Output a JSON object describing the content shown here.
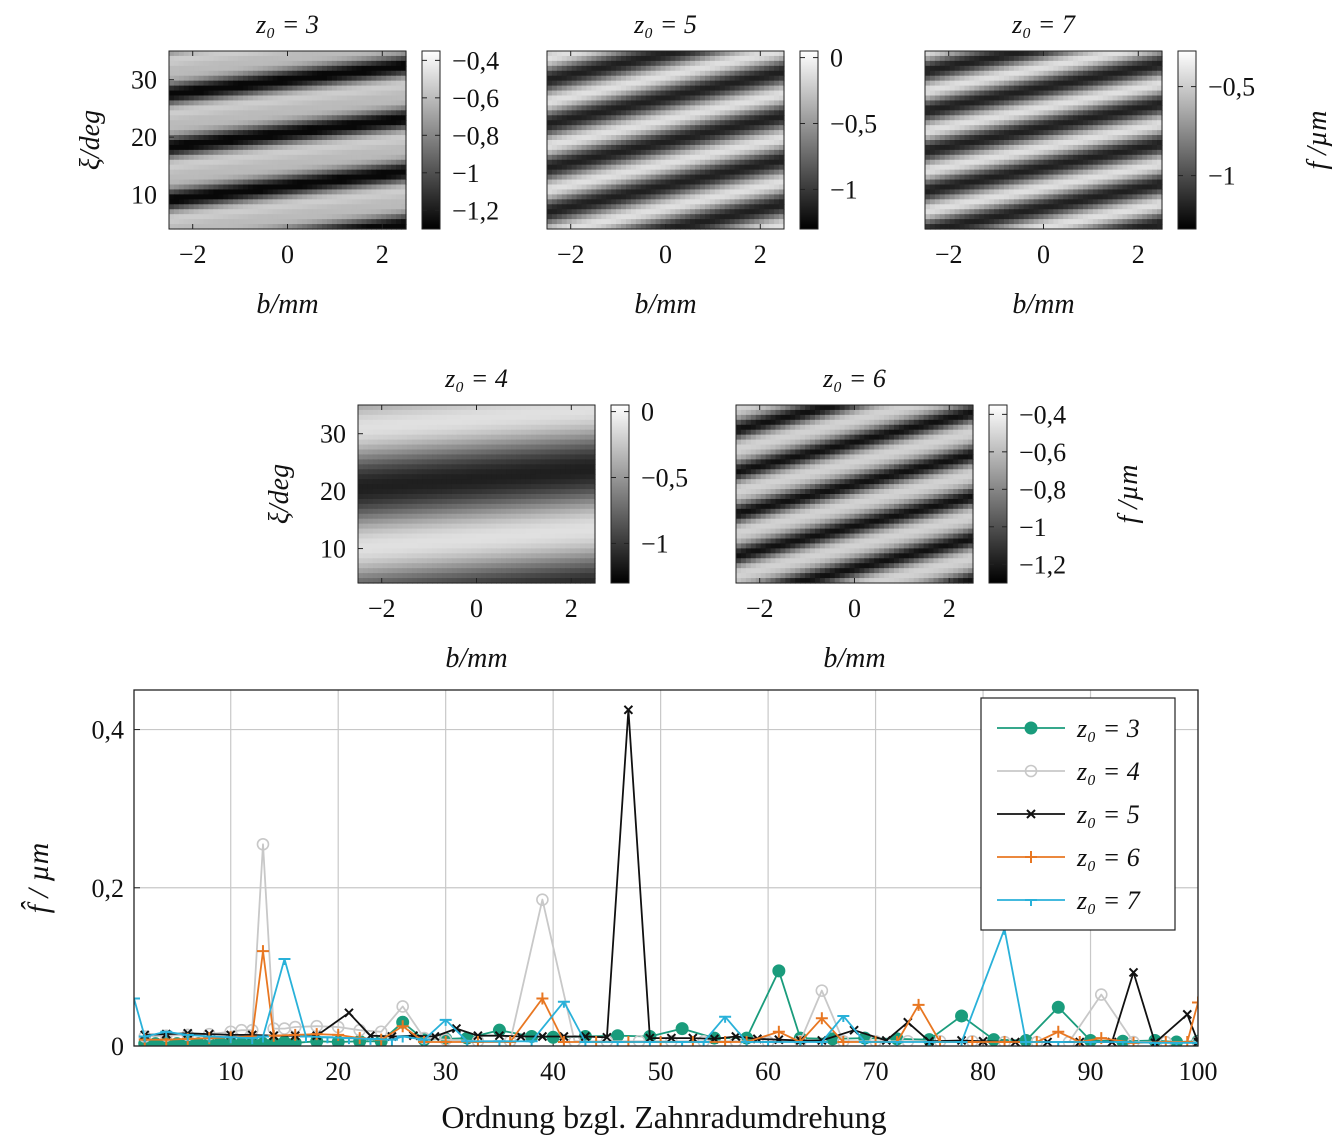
{
  "heatmaps": [
    {
      "id": "hm3",
      "title": "z₀ = 3",
      "x_ticks": [
        "−2",
        "0",
        "2"
      ],
      "x_tick_values": [
        -2,
        0,
        2
      ],
      "y_ticks": [
        "10",
        "20",
        "30"
      ],
      "y_tick_values": [
        10,
        20,
        30
      ],
      "xlabel": "b/mm",
      "ylabel": "ξ/deg",
      "colorbar_ticks": [
        "−0,4",
        "−0,6",
        "−0,8",
        "−1",
        "−1,2"
      ],
      "colorbar_values": [
        -0.4,
        -0.6,
        -0.8,
        -1.0,
        -1.2
      ],
      "cb_range": [
        -1.3,
        -0.35
      ],
      "colorbar_label": ""
    },
    {
      "id": "hm5",
      "title": "z₀ = 5",
      "x_ticks": [
        "−2",
        "0",
        "2"
      ],
      "x_tick_values": [
        -2,
        0,
        2
      ],
      "y_ticks": [],
      "y_tick_values": [],
      "xlabel": "b/mm",
      "ylabel": "",
      "colorbar_ticks": [
        "0",
        "−0,5",
        "−1"
      ],
      "colorbar_values": [
        0,
        -0.5,
        -1.0
      ],
      "cb_range": [
        -1.3,
        0.05
      ],
      "colorbar_label": ""
    },
    {
      "id": "hm7",
      "title": "z₀ = 7",
      "x_ticks": [
        "−2",
        "0",
        "2"
      ],
      "x_tick_values": [
        -2,
        0,
        2
      ],
      "y_ticks": [],
      "y_tick_values": [],
      "xlabel": "b/mm",
      "ylabel": "",
      "colorbar_ticks": [
        "−0,5",
        "−1"
      ],
      "colorbar_values": [
        -0.5,
        -1.0
      ],
      "cb_range": [
        -1.3,
        -0.3
      ],
      "colorbar_label": "f /µm"
    },
    {
      "id": "hm4",
      "title": "z₀ = 4",
      "x_ticks": [
        "−2",
        "0",
        "2"
      ],
      "x_tick_values": [
        -2,
        0,
        2
      ],
      "y_ticks": [
        "10",
        "20",
        "30"
      ],
      "y_tick_values": [
        10,
        20,
        30
      ],
      "xlabel": "b/mm",
      "ylabel": "ξ/deg",
      "colorbar_ticks": [
        "0",
        "−0,5",
        "−1"
      ],
      "colorbar_values": [
        0,
        -0.5,
        -1.0
      ],
      "cb_range": [
        -1.3,
        0.05
      ],
      "colorbar_label": ""
    },
    {
      "id": "hm6",
      "title": "z₀ = 6",
      "x_ticks": [
        "−2",
        "0",
        "2"
      ],
      "x_tick_values": [
        -2,
        0,
        2
      ],
      "y_ticks": [],
      "y_tick_values": [],
      "xlabel": "b/mm",
      "ylabel": "",
      "colorbar_ticks": [
        "−0,4",
        "−0,6",
        "−0,8",
        "−1",
        "−1,2"
      ],
      "colorbar_values": [
        -0.4,
        -0.6,
        -0.8,
        -1.0,
        -1.2
      ],
      "cb_range": [
        -1.3,
        -0.35
      ],
      "colorbar_label": "f /µm"
    }
  ],
  "chart_data": {
    "type": "line",
    "xlabel": "Ordnung bzgl. Zahnradumdrehung",
    "ylabel": "f̂ / µm",
    "xlim": [
      1,
      100
    ],
    "ylim": [
      0,
      0.45
    ],
    "x_ticks": [
      10,
      20,
      30,
      40,
      50,
      60,
      70,
      80,
      90,
      100
    ],
    "y_ticks": [
      0,
      0.2,
      0.4
    ],
    "y_tick_labels": [
      "0",
      "0,2",
      "0,4"
    ],
    "grid": true,
    "legend_position": "top-right",
    "series": [
      {
        "name": "z₀ = 3",
        "color": "#1a9c7c",
        "marker": "filled-circle",
        "points": [
          [
            2,
            0.003
          ],
          [
            3,
            0.003
          ],
          [
            4,
            0.004
          ],
          [
            5,
            0.003
          ],
          [
            6,
            0.004
          ],
          [
            7,
            0.003
          ],
          [
            8,
            0.003
          ],
          [
            9,
            0.004
          ],
          [
            10,
            0.004
          ],
          [
            11,
            0.003
          ],
          [
            12,
            0.004
          ],
          [
            13,
            0.003
          ],
          [
            14,
            0.004
          ],
          [
            15,
            0.005
          ],
          [
            16,
            0.004
          ],
          [
            18,
            0.006
          ],
          [
            20,
            0.005
          ],
          [
            22,
            0.006
          ],
          [
            24,
            0.006
          ],
          [
            26,
            0.03
          ],
          [
            28,
            0.008
          ],
          [
            30,
            0.009
          ],
          [
            32,
            0.01
          ],
          [
            35,
            0.02
          ],
          [
            38,
            0.012
          ],
          [
            40,
            0.011
          ],
          [
            43,
            0.012
          ],
          [
            46,
            0.013
          ],
          [
            49,
            0.012
          ],
          [
            52,
            0.022
          ],
          [
            55,
            0.01
          ],
          [
            58,
            0.01
          ],
          [
            61,
            0.095
          ],
          [
            63,
            0.01
          ],
          [
            66,
            0.009
          ],
          [
            69,
            0.01
          ],
          [
            72,
            0.009
          ],
          [
            75,
            0.008
          ],
          [
            78,
            0.038
          ],
          [
            81,
            0.008
          ],
          [
            84,
            0.007
          ],
          [
            87,
            0.049
          ],
          [
            90,
            0.007
          ],
          [
            93,
            0.006
          ],
          [
            96,
            0.007
          ],
          [
            98,
            0.005
          ],
          [
            100,
            0.006
          ]
        ]
      },
      {
        "name": "z₀ = 4",
        "color": "#c8c8c8",
        "marker": "open-circle",
        "points": [
          [
            2,
            0.012
          ],
          [
            4,
            0.013
          ],
          [
            6,
            0.014
          ],
          [
            8,
            0.015
          ],
          [
            10,
            0.018
          ],
          [
            11,
            0.02
          ],
          [
            12,
            0.02
          ],
          [
            13,
            0.255
          ],
          [
            14,
            0.022
          ],
          [
            15,
            0.022
          ],
          [
            16,
            0.024
          ],
          [
            18,
            0.025
          ],
          [
            20,
            0.024
          ],
          [
            22,
            0.02
          ],
          [
            24,
            0.018
          ],
          [
            26,
            0.05
          ],
          [
            28,
            0.01
          ],
          [
            30,
            0.008
          ],
          [
            33,
            0.006
          ],
          [
            36,
            0.006
          ],
          [
            39,
            0.185
          ],
          [
            42,
            0.006
          ],
          [
            45,
            0.006
          ],
          [
            48,
            0.006
          ],
          [
            51,
            0.006
          ],
          [
            54,
            0.006
          ],
          [
            57,
            0.006
          ],
          [
            60,
            0.005
          ],
          [
            63,
            0.006
          ],
          [
            65,
            0.07
          ],
          [
            67,
            0.006
          ],
          [
            70,
            0.006
          ],
          [
            73,
            0.006
          ],
          [
            76,
            0.006
          ],
          [
            79,
            0.006
          ],
          [
            82,
            0.005
          ],
          [
            85,
            0.005
          ],
          [
            88,
            0.005
          ],
          [
            91,
            0.065
          ],
          [
            94,
            0.005
          ],
          [
            97,
            0.005
          ],
          [
            100,
            0.005
          ]
        ]
      },
      {
        "name": "z₀ = 5",
        "color": "#111111",
        "marker": "x",
        "points": [
          [
            2,
            0.014
          ],
          [
            4,
            0.015
          ],
          [
            6,
            0.016
          ],
          [
            8,
            0.015
          ],
          [
            10,
            0.014
          ],
          [
            12,
            0.014
          ],
          [
            14,
            0.013
          ],
          [
            16,
            0.013
          ],
          [
            18,
            0.013
          ],
          [
            21,
            0.042
          ],
          [
            23,
            0.013
          ],
          [
            25,
            0.012
          ],
          [
            27,
            0.013
          ],
          [
            29,
            0.012
          ],
          [
            31,
            0.022
          ],
          [
            33,
            0.013
          ],
          [
            35,
            0.013
          ],
          [
            37,
            0.012
          ],
          [
            39,
            0.012
          ],
          [
            41,
            0.012
          ],
          [
            43,
            0.012
          ],
          [
            45,
            0.011
          ],
          [
            47,
            0.425
          ],
          [
            49,
            0.01
          ],
          [
            51,
            0.01
          ],
          [
            53,
            0.01
          ],
          [
            55,
            0.009
          ],
          [
            57,
            0.012
          ],
          [
            59,
            0.009
          ],
          [
            61,
            0.008
          ],
          [
            63,
            0.007
          ],
          [
            65,
            0.007
          ],
          [
            68,
            0.02
          ],
          [
            71,
            0.007
          ],
          [
            73,
            0.03
          ],
          [
            75,
            0.006
          ],
          [
            78,
            0.007
          ],
          [
            80,
            0.006
          ],
          [
            83,
            0.005
          ],
          [
            86,
            0.005
          ],
          [
            89,
            0.005
          ],
          [
            92,
            0.005
          ],
          [
            94,
            0.093
          ],
          [
            96,
            0.004
          ],
          [
            99,
            0.04
          ],
          [
            100,
            0.005
          ]
        ]
      },
      {
        "name": "z₀ = 6",
        "color": "#e87722",
        "marker": "plus",
        "points": [
          [
            2,
            0.008
          ],
          [
            4,
            0.008
          ],
          [
            6,
            0.009
          ],
          [
            8,
            0.01
          ],
          [
            10,
            0.011
          ],
          [
            12,
            0.012
          ],
          [
            13,
            0.12
          ],
          [
            14,
            0.013
          ],
          [
            16,
            0.014
          ],
          [
            18,
            0.015
          ],
          [
            20,
            0.014
          ],
          [
            22,
            0.01
          ],
          [
            24,
            0.008
          ],
          [
            26,
            0.025
          ],
          [
            28,
            0.005
          ],
          [
            30,
            0.005
          ],
          [
            33,
            0.005
          ],
          [
            36,
            0.005
          ],
          [
            39,
            0.06
          ],
          [
            41,
            0.005
          ],
          [
            44,
            0.005
          ],
          [
            47,
            0.005
          ],
          [
            50,
            0.005
          ],
          [
            53,
            0.005
          ],
          [
            56,
            0.005
          ],
          [
            58,
            0.005
          ],
          [
            61,
            0.018
          ],
          [
            63,
            0.005
          ],
          [
            65,
            0.035
          ],
          [
            67,
            0.005
          ],
          [
            70,
            0.005
          ],
          [
            72,
            0.005
          ],
          [
            74,
            0.052
          ],
          [
            76,
            0.005
          ],
          [
            79,
            0.005
          ],
          [
            82,
            0.005
          ],
          [
            85,
            0.005
          ],
          [
            87,
            0.018
          ],
          [
            89,
            0.005
          ],
          [
            91,
            0.01
          ],
          [
            94,
            0.004
          ],
          [
            97,
            0.005
          ],
          [
            99,
            0.005
          ],
          [
            100,
            0.055
          ]
        ]
      },
      {
        "name": "z₀ = 7",
        "color": "#29b1d9",
        "marker": "tick",
        "points": [
          [
            1,
            0.06
          ],
          [
            2,
            0.012
          ],
          [
            4,
            0.018
          ],
          [
            6,
            0.014
          ],
          [
            8,
            0.012
          ],
          [
            10,
            0.011
          ],
          [
            12,
            0.01
          ],
          [
            13,
            0.012
          ],
          [
            15,
            0.11
          ],
          [
            17,
            0.012
          ],
          [
            19,
            0.011
          ],
          [
            21,
            0.01
          ],
          [
            23,
            0.009
          ],
          [
            25,
            0.008
          ],
          [
            26,
            0.012
          ],
          [
            28,
            0.008
          ],
          [
            30,
            0.033
          ],
          [
            32,
            0.006
          ],
          [
            35,
            0.006
          ],
          [
            38,
            0.006
          ],
          [
            41,
            0.056
          ],
          [
            43,
            0.005
          ],
          [
            46,
            0.005
          ],
          [
            49,
            0.005
          ],
          [
            52,
            0.005
          ],
          [
            54,
            0.005
          ],
          [
            56,
            0.037
          ],
          [
            58,
            0.005
          ],
          [
            60,
            0.005
          ],
          [
            63,
            0.005
          ],
          [
            65,
            0.005
          ],
          [
            67,
            0.038
          ],
          [
            69,
            0.005
          ],
          [
            72,
            0.005
          ],
          [
            75,
            0.005
          ],
          [
            78,
            0.005
          ],
          [
            82,
            0.148
          ],
          [
            84,
            0.005
          ],
          [
            87,
            0.005
          ],
          [
            90,
            0.005
          ],
          [
            93,
            0.005
          ],
          [
            96,
            0.004
          ],
          [
            98,
            0.004
          ],
          [
            100,
            0.004
          ]
        ]
      }
    ]
  }
}
